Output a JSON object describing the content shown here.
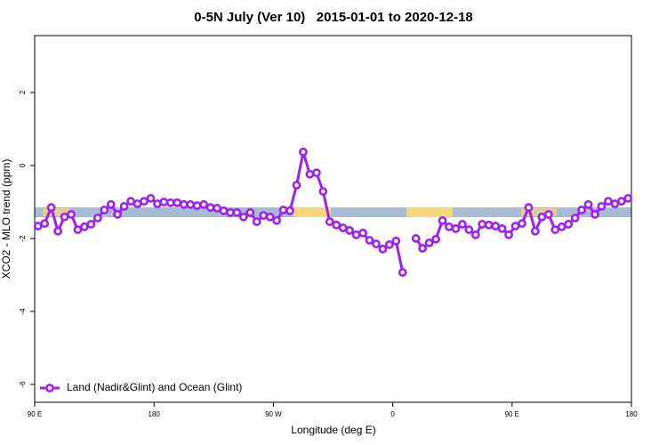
{
  "chart_data": {
    "type": "line",
    "title": "0-5N July (Ver 10)   2015-01-01 to 2020-12-18",
    "xlabel": "Longitude (deg E)",
    "ylabel": "XCO2 - MLO trend (ppm)",
    "xlim": [
      90,
      540
    ],
    "ylim": [
      -6.49,
      3.56
    ],
    "xticks": [
      {
        "value": 90,
        "label": "90 E"
      },
      180,
      {
        "value": 270,
        "label": "90 W"
      },
      {
        "value": 360,
        "label": "0"
      },
      {
        "value": 450,
        "label": "90 E"
      },
      {
        "value": 540,
        "label": "180"
      }
    ],
    "yticks": [
      -6,
      -4,
      -2,
      0,
      2
    ],
    "legend": "bottom-left",
    "series": [
      {
        "name": "Land (Nadir&Glint) and Ocean (Glint)",
        "color": "#a020f0",
        "x": [
          92.5,
          97.5,
          102.5,
          107.5,
          112.5,
          117.5,
          122.5,
          127.5,
          132.5,
          137.5,
          142.5,
          147.5,
          152.5,
          157.5,
          162.5,
          167.5,
          172.5,
          177.5,
          182.5,
          187.5,
          192.5,
          197.5,
          202.5,
          207.5,
          212.5,
          217.5,
          222.5,
          227.5,
          232.5,
          237.5,
          242.5,
          247.5,
          252.5,
          257.5,
          262.5,
          267.5,
          272.5,
          277.5,
          282.5,
          287.5,
          292.5,
          297.5,
          302.5,
          307.5,
          312.5,
          317.5,
          322.5,
          327.5,
          332.5,
          337.5,
          342.5,
          347.5,
          352.5,
          357.5,
          362.5,
          367.5,
          372.5,
          377.5,
          382.5,
          387.5,
          392.5,
          397.5,
          402.5,
          407.5,
          412.5,
          417.5,
          422.5,
          427.5,
          432.5,
          437.5,
          442.5,
          447.5,
          452.5,
          457.5,
          462.5,
          467.5,
          472.5,
          477.5,
          482.5,
          487.5,
          492.5,
          497.5,
          502.5,
          507.5,
          512.5,
          517.5,
          522.5,
          527.5,
          532.5,
          537.5
        ],
        "values": [
          -1.66,
          -1.59,
          -1.15,
          -1.8,
          -1.41,
          -1.34,
          -1.76,
          -1.68,
          -1.61,
          -1.44,
          -1.22,
          -1.07,
          -1.34,
          -1.12,
          -0.98,
          -1.05,
          -0.98,
          -0.9,
          -1.05,
          -1.0,
          -1.02,
          -1.02,
          -1.07,
          -1.07,
          -1.1,
          -1.07,
          -1.15,
          -1.17,
          -1.24,
          -1.29,
          -1.29,
          -1.41,
          -1.29,
          -1.54,
          -1.37,
          -1.41,
          -1.51,
          -1.22,
          -1.24,
          -0.54,
          0.37,
          -0.24,
          -0.2,
          -0.71,
          -1.54,
          -1.63,
          -1.71,
          -1.78,
          -1.9,
          -1.85,
          -2.05,
          -2.15,
          -2.29,
          -2.17,
          -2.07,
          -2.93,
          null,
          -2.0,
          -2.27,
          -2.12,
          -2.02,
          -1.51,
          -1.68,
          -1.73,
          -1.61,
          -1.76,
          -1.9,
          -1.61,
          -1.63,
          -1.66,
          -1.73,
          -1.9,
          -1.66,
          -1.59,
          -1.15,
          -1.8,
          -1.41,
          -1.34,
          -1.76,
          -1.68,
          -1.61,
          -1.44,
          -1.22,
          -1.07,
          -1.34,
          -1.12,
          -0.98,
          -1.05,
          -0.98,
          -0.9
        ]
      }
    ]
  }
}
